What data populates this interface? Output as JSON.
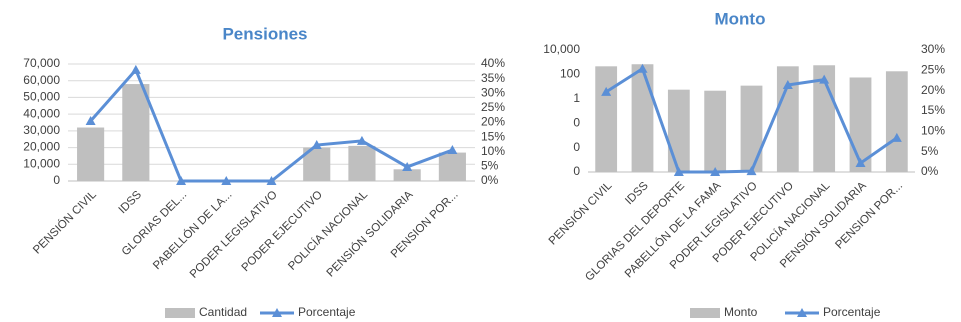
{
  "chart_data": [
    {
      "type": "bar",
      "title": "Pensiones",
      "categories": [
        "PENSIÓN CIVIL",
        "IDSS",
        "GLORIAS DEL...",
        "PABELLÓN DE LA...",
        "PODER LEGISLATIVO",
        "PODER EJECUTIVO",
        "POLICÍA NACIONAL",
        "PENSIÓN SOLIDARIA",
        "PENSION POR..."
      ],
      "series": [
        {
          "name": "Cantidad",
          "type": "bar",
          "color": "#bfbfbf",
          "values": [
            32000,
            58000,
            100,
            50,
            150,
            20000,
            21000,
            7000,
            17000
          ]
        },
        {
          "name": "Porcentaje",
          "type": "line",
          "axis": "y2",
          "color": "#5b8fd6",
          "values": [
            20.5,
            38,
            0,
            0,
            0,
            12.3,
            13.7,
            4.8,
            10.6
          ]
        }
      ],
      "ylim": [
        0,
        70000
      ],
      "yticks": [
        0,
        {
          "value": 10000,
          "label": "10,000"
        },
        {
          "value": 20000,
          "label": "20,000"
        },
        {
          "value": 30000,
          "label": "30,000"
        },
        {
          "value": 40000,
          "label": "40,000"
        },
        {
          "value": 50000,
          "label": "50,000"
        },
        {
          "value": 60000,
          "label": "60,000"
        },
        {
          "value": 70000,
          "label": "70,000"
        }
      ],
      "y2lim": [
        0,
        40
      ],
      "y2ticks": [
        {
          "value": 0,
          "label": "0%"
        },
        {
          "value": 5,
          "label": "5%"
        },
        {
          "value": 10,
          "label": "10%"
        },
        {
          "value": 15,
          "label": "15%"
        },
        {
          "value": 20,
          "label": "20%"
        },
        {
          "value": 25,
          "label": "25%"
        },
        {
          "value": 30,
          "label": "30%"
        },
        {
          "value": 35,
          "label": "35%"
        },
        {
          "value": 40,
          "label": "40%"
        }
      ],
      "grid": true,
      "log_scale": false,
      "legend": "bottom"
    },
    {
      "type": "bar",
      "title": "Monto",
      "categories": [
        "PENSIÓN CIVIL",
        "IDSS",
        "GLORIAS DEL DEPORTE",
        "PABELLÓN DE LA FAMA",
        "PODER LEGISLATIVO",
        "PODER EJECUTIVO",
        "POLICÍA NACIONAL",
        "PENSIÓN SOLIDARIA",
        "PENSION POR..."
      ],
      "series": [
        {
          "name": "Monto",
          "type": "bar",
          "color": "#bfbfbf",
          "values": [
            460,
            680,
            5.6,
            4.6,
            12,
            460,
            560,
            56,
            180
          ]
        },
        {
          "name": "Porcentaje",
          "type": "line",
          "axis": "y2",
          "color": "#5b8fd6",
          "values": [
            19.7,
            25.4,
            0,
            0,
            0.2,
            21.4,
            22.7,
            2.2,
            8.4
          ]
        }
      ],
      "ylim": [
        1e-06,
        10000
      ],
      "yticks": [
        {
          "value": 1e-06,
          "label": "0"
        },
        {
          "value": 0.0001,
          "label": "0"
        },
        {
          "value": 0.01,
          "label": "0"
        },
        1,
        100,
        {
          "value": 10000,
          "label": "10,000"
        }
      ],
      "y2lim": [
        0,
        30
      ],
      "y2ticks": [
        {
          "value": 0,
          "label": "0%"
        },
        {
          "value": 5,
          "label": "5%"
        },
        {
          "value": 10,
          "label": "10%"
        },
        {
          "value": 15,
          "label": "15%"
        },
        {
          "value": 20,
          "label": "20%"
        },
        {
          "value": 25,
          "label": "25%"
        },
        {
          "value": 30,
          "label": "30%"
        }
      ],
      "grid": false,
      "log_scale": true,
      "legend": "bottom"
    }
  ]
}
